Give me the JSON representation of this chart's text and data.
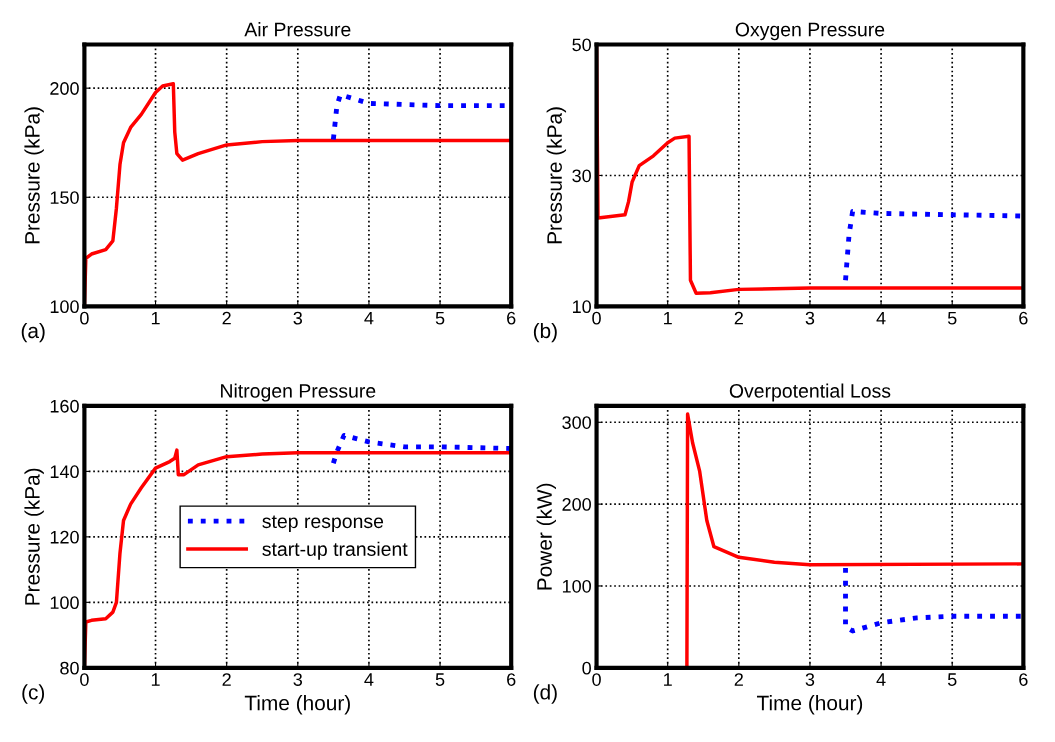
{
  "chart_data": [
    {
      "type": "line",
      "title": "Air Pressure",
      "ylabel": "Pressure (kPa)",
      "xlim": [
        0,
        6
      ],
      "xticks": [
        0,
        1,
        2,
        3,
        4,
        5,
        6
      ],
      "ylim": [
        100,
        220
      ],
      "yticks": [
        100,
        150,
        200
      ],
      "grid": true,
      "annotations": [
        "(a)"
      ],
      "series": [
        {
          "color": "#ff0000",
          "line_style": "solid",
          "x": [
            0,
            0.02,
            0.1,
            0.3,
            0.4,
            0.45,
            0.5,
            0.55,
            0.65,
            0.8,
            1.0,
            1.1,
            1.25,
            1.27,
            1.3,
            1.38,
            1.6,
            2.0,
            2.5,
            3,
            6
          ],
          "values": [
            100,
            122,
            124,
            126,
            130,
            145,
            165,
            175,
            182,
            188,
            198,
            201,
            202,
            180,
            170,
            167,
            170,
            174,
            175.5,
            176,
            176
          ]
        },
        {
          "color": "#0000ff",
          "line_style": "dotted",
          "x": [
            3.5,
            3.55,
            3.6,
            3.8,
            4,
            5,
            6
          ],
          "values": [
            176.5,
            192,
            197,
            195,
            193,
            192,
            192
          ]
        }
      ]
    },
    {
      "type": "line",
      "title": "Oxygen Pressure",
      "ylabel": "Pressure (kPa)",
      "xlim": [
        0,
        6
      ],
      "xticks": [
        0,
        1,
        2,
        3,
        4,
        5,
        6
      ],
      "ylim": [
        10,
        50
      ],
      "yticks": [
        10,
        30,
        50
      ],
      "grid": true,
      "annotations": [
        "(b)"
      ],
      "series": [
        {
          "color": "#ff0000",
          "line_style": "solid",
          "x": [
            0,
            0.02,
            0.4,
            0.45,
            0.5,
            0.6,
            0.8,
            1.0,
            1.1,
            1.3,
            1.32,
            1.4,
            1.6,
            2,
            3,
            6
          ],
          "values": [
            50,
            23.5,
            24,
            26,
            29,
            31.5,
            33,
            35,
            35.7,
            36,
            14,
            12,
            12.1,
            12.6,
            12.8,
            12.8
          ]
        },
        {
          "color": "#0000ff",
          "line_style": "dotted",
          "x": [
            3.5,
            3.55,
            3.6,
            4,
            6
          ],
          "values": [
            14,
            21,
            24.5,
            24.2,
            23.8
          ]
        }
      ]
    },
    {
      "type": "line",
      "title": "Nitrogen Pressure",
      "xlabel": "Time (hour)",
      "ylabel": "Pressure (kPa)",
      "xlim": [
        0,
        6
      ],
      "xticks": [
        0,
        1,
        2,
        3,
        4,
        5,
        6
      ],
      "ylim": [
        80,
        160
      ],
      "yticks": [
        80,
        100,
        120,
        140,
        160
      ],
      "grid": true,
      "legend": "center",
      "annotations": [
        "(c)"
      ],
      "series": [
        {
          "name": "step response",
          "color": "#0000ff",
          "line_style": "dotted",
          "x": [
            3.5,
            3.55,
            3.65,
            4,
            4.5,
            5,
            6
          ],
          "values": [
            142.5,
            146,
            151,
            149,
            147.5,
            147.5,
            147
          ]
        },
        {
          "name": "start-up transient",
          "color": "#ff0000",
          "line_style": "solid",
          "x": [
            0,
            0.02,
            0.1,
            0.3,
            0.4,
            0.45,
            0.5,
            0.55,
            0.65,
            0.8,
            1.0,
            1.2,
            1.27,
            1.3,
            1.32,
            1.4,
            1.6,
            2,
            2.5,
            3,
            6
          ],
          "values": [
            80,
            94,
            94.5,
            95,
            97,
            100,
            115,
            125,
            130,
            135,
            141,
            143,
            144,
            146.5,
            139,
            139,
            142,
            144.5,
            145.3,
            145.7,
            145.7
          ]
        }
      ]
    },
    {
      "type": "line",
      "title": "Overpotential Loss",
      "xlabel": "Time (hour)",
      "ylabel": "Power (kW)",
      "xlim": [
        0,
        6
      ],
      "xticks": [
        0,
        1,
        2,
        3,
        4,
        5,
        6
      ],
      "ylim": [
        0,
        320
      ],
      "yticks": [
        0,
        100,
        200,
        300
      ],
      "grid": true,
      "annotations": [
        "(d)"
      ],
      "series": [
        {
          "color": "#ff0000",
          "line_style": "solid",
          "x": [
            0,
            1.27,
            1.28,
            1.35,
            1.45,
            1.55,
            1.65,
            2,
            2.5,
            3,
            6
          ],
          "values": [
            0,
            0,
            310,
            275,
            240,
            180,
            148,
            135,
            129,
            126,
            127
          ]
        },
        {
          "color": "#0000ff",
          "line_style": "dotted",
          "x": [
            3.5,
            3.5,
            3.6,
            4,
            4.5,
            5,
            6
          ],
          "values": [
            122,
            50,
            45,
            55,
            61,
            63,
            63
          ]
        }
      ]
    }
  ]
}
